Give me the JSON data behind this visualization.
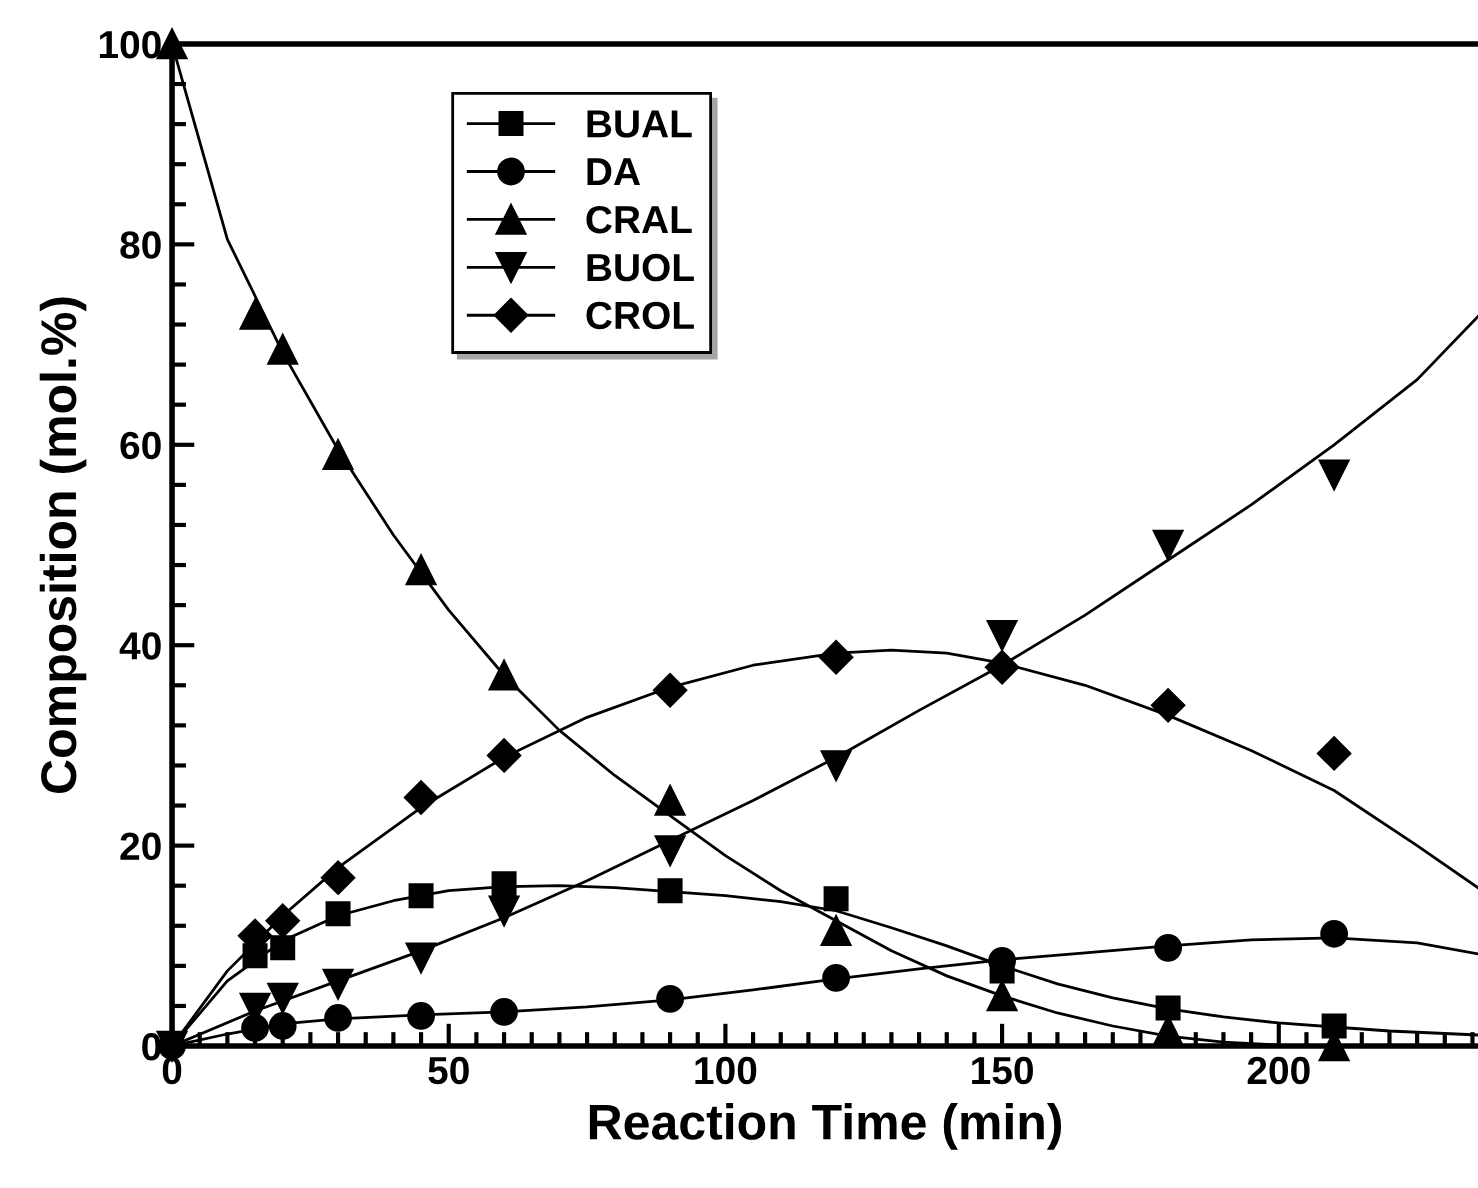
{
  "chart_data": {
    "type": "scatter",
    "xlabel": "Reaction Time (min)",
    "ylabel": "Composition (mol.%)",
    "xlim": [
      0,
      236
    ],
    "ylim": [
      0,
      100
    ],
    "xticks": [
      0,
      50,
      100,
      150,
      200
    ],
    "yticks": [
      0,
      20,
      40,
      60,
      80,
      100
    ],
    "grid": false,
    "legend": "top left",
    "x": [
      0,
      15,
      20,
      30,
      45,
      60,
      90,
      120,
      150,
      180,
      210
    ],
    "series": [
      {
        "name": "BUAL",
        "color": "#000000",
        "marker": "square",
        "values": [
          null,
          9,
          9.8,
          13.2,
          15,
          16.2,
          15.5,
          14.7,
          7.5,
          3.8,
          2
        ]
      },
      {
        "name": "DA",
        "color": "#000000",
        "marker": "circle",
        "values": [
          0,
          1.8,
          2,
          2.8,
          3,
          3.4,
          4.7,
          6.8,
          8.5,
          9.8,
          11.2
        ]
      },
      {
        "name": "CRAL",
        "color": "#000000",
        "marker": "triangle",
        "values": [
          100,
          73,
          69.5,
          59,
          47.5,
          37,
          24.5,
          11.5,
          5,
          1.5,
          0
        ]
      },
      {
        "name": "BUOL",
        "color": "#000000",
        "marker": "triangle_down",
        "values": [
          0,
          3.8,
          4.8,
          6.2,
          8.8,
          13.5,
          19.5,
          28,
          41,
          50,
          57
        ]
      },
      {
        "name": "CROL",
        "color": "#000000",
        "marker": "diamond",
        "values": [
          null,
          11,
          12.5,
          16.8,
          24.8,
          29,
          35.5,
          38.8,
          37.8,
          34,
          29.2
        ]
      },
      {
        "type": "line",
        "color": "#000000",
        "x": [
          0,
          10,
          20,
          30,
          40,
          50,
          60,
          70,
          80,
          90,
          100,
          110,
          120,
          130,
          140,
          150,
          160,
          170,
          180,
          190,
          200,
          210,
          220,
          236
        ],
        "values": [
          0,
          6.5,
          10.5,
          13,
          14.5,
          15.5,
          15.9,
          16,
          15.8,
          15.4,
          15,
          14.4,
          13.5,
          11.8,
          10,
          8,
          6.2,
          4.8,
          3.7,
          2.9,
          2.3,
          1.9,
          1.5,
          1.1
        ]
      },
      {
        "type": "line",
        "color": "#000000",
        "x": [
          0,
          10,
          20,
          30,
          45,
          60,
          75,
          90,
          105,
          120,
          135,
          150,
          165,
          180,
          195,
          210,
          225,
          236
        ],
        "values": [
          0,
          1.2,
          2.2,
          2.7,
          3.1,
          3.4,
          3.9,
          4.6,
          5.6,
          6.7,
          7.7,
          8.6,
          9.3,
          10,
          10.6,
          10.8,
          10.3,
          9.2
        ]
      },
      {
        "type": "line",
        "color": "#000000",
        "x": [
          0,
          10,
          20,
          30,
          40,
          50,
          60,
          70,
          80,
          90,
          100,
          110,
          120,
          130,
          140,
          150,
          160,
          170,
          180,
          190,
          200,
          210,
          220,
          236
        ],
        "values": [
          100,
          80.5,
          69.2,
          59.5,
          51,
          43.5,
          37,
          31.5,
          27,
          23,
          19,
          15.5,
          12.5,
          9.5,
          7,
          5,
          3.3,
          2,
          1,
          0.4,
          0.1,
          0,
          0,
          0
        ]
      },
      {
        "type": "line",
        "color": "#000000",
        "x": [
          0,
          15,
          30,
          45,
          60,
          75,
          90,
          105,
          120,
          135,
          150,
          165,
          180,
          195,
          210,
          225,
          236
        ],
        "values": [
          0,
          3.5,
          6.5,
          9.5,
          12.8,
          16.5,
          20.5,
          24.5,
          28.8,
          33.5,
          38,
          43,
          48.5,
          54,
          60,
          66.5,
          72.8
        ]
      },
      {
        "type": "line",
        "color": "#000000",
        "x": [
          0,
          10,
          20,
          30,
          45,
          60,
          75,
          90,
          105,
          120,
          130,
          140,
          150,
          165,
          180,
          195,
          210,
          225,
          236
        ],
        "values": [
          0,
          7.5,
          13,
          17.8,
          23.8,
          28.8,
          32.8,
          35.8,
          38,
          39.2,
          39.5,
          39.2,
          38.2,
          36,
          33,
          29.5,
          25.5,
          20,
          15.8
        ]
      }
    ]
  }
}
